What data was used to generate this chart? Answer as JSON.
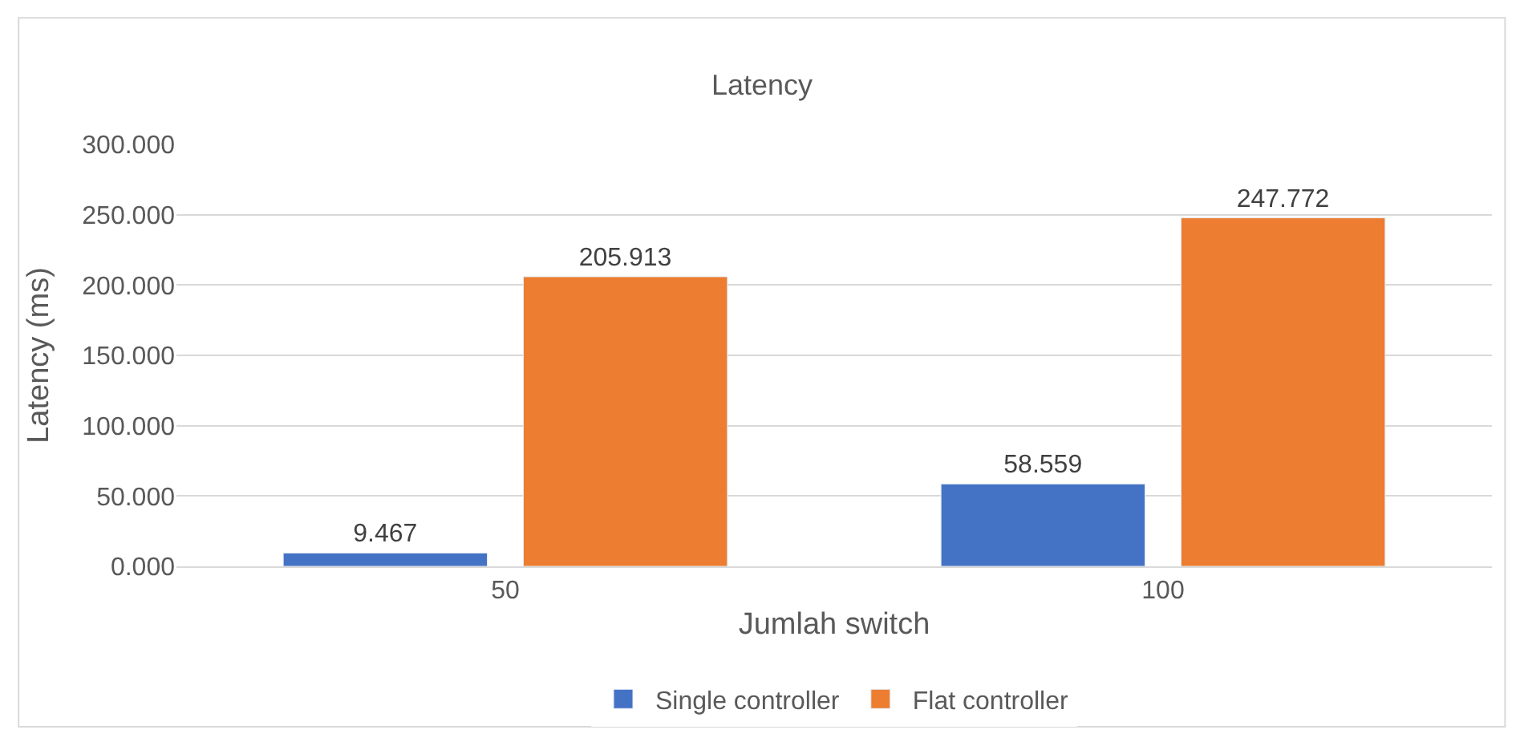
{
  "chart_data": {
    "type": "bar",
    "title": "Latency",
    "xlabel": "Jumlah switch",
    "ylabel": "Latency (ms)",
    "categories": [
      "50",
      "100"
    ],
    "series": [
      {
        "name": "Single controller",
        "color": "#4472c4",
        "values": [
          9.467,
          58.559
        ]
      },
      {
        "name": "Flat controller",
        "color": "#ed7d31",
        "values": [
          205.913,
          247.772
        ]
      }
    ],
    "ylim": [
      0,
      300
    ],
    "yticks": [
      {
        "value": 0,
        "label": "0.000"
      },
      {
        "value": 50,
        "label": "50.000"
      },
      {
        "value": 100,
        "label": "100.000"
      },
      {
        "value": 150,
        "label": "150.000"
      },
      {
        "value": 200,
        "label": "200.000"
      },
      {
        "value": 250,
        "label": "250.000"
      },
      {
        "value": 300,
        "label": "300.000"
      }
    ],
    "grid": "y",
    "legend": "bottom",
    "data_labels": true
  }
}
